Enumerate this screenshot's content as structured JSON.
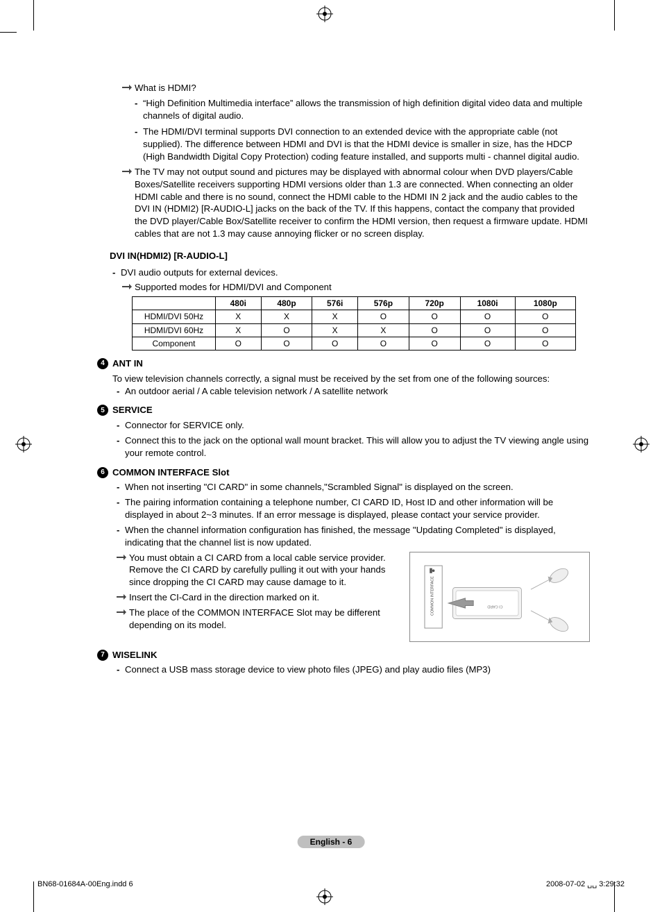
{
  "crop_marks": {
    "color": "#000000",
    "len_long": 44,
    "len_short": 24
  },
  "arrow_icon_label": "note-arrow",
  "sections": {
    "hdmi_q": "What is HDMI?",
    "hdmi_def": "“High Definition Multimedia interface” allows the transmission of high definition digital video data and multiple channels of digital audio.",
    "hdmi_dvi": "The HDMI/DVI terminal supports DVI connection to an extended device with the appropriate cable (not supplied). The difference between HDMI and DVI is that the HDMI device is smaller in size, has the HDCP (High Bandwidth Digital Copy Protection) coding feature installed, and supports multi - channel digital audio.",
    "hdmi_warn": "The TV may not output sound and pictures may be displayed with abnormal colour when DVD players/Cable Boxes/Satellite receivers supporting HDMI versions older than 1.3 are connected. When connecting an older HDMI cable and there is no sound, connect the HDMI cable to the HDMI IN 2 jack and the audio cables to the DVI IN (HDMI2) [R-AUDIO-L] jacks on the back of the TV. If this happens, contact the company that provided the DVD player/Cable Box/Satellite receiver to confirm the HDMI version, then request a firmware update. HDMI cables that are not 1.3 may cause annoying flicker or no screen display."
  },
  "dvi_heading": "DVI IN(HDMI2) [R-AUDIO-L]",
  "dvi_bullet": "DVI audio outputs for external devices.",
  "dvi_modes_note": "Supported modes for HDMI/DVI and Component",
  "modes_table": {
    "columns": [
      "",
      "480i",
      "480p",
      "576i",
      "576p",
      "720p",
      "1080i",
      "1080p"
    ],
    "rows": [
      [
        "HDMI/DVI 50Hz",
        "X",
        "X",
        "X",
        "O",
        "O",
        "O",
        "O"
      ],
      [
        "HDMI/DVI 60Hz",
        "X",
        "O",
        "X",
        "X",
        "O",
        "O",
        "O"
      ],
      [
        "Component",
        "O",
        "O",
        "O",
        "O",
        "O",
        "O",
        "O"
      ]
    ],
    "header_bg": "#ffffff",
    "border_color": "#000000",
    "fontsize": 12
  },
  "ant": {
    "num": "4",
    "title": "ANT IN",
    "intro": "To view television channels correctly, a signal must be received by the set from one of the following sources:",
    "bullet": "An outdoor aerial / A cable television network / A satellite network"
  },
  "service": {
    "num": "5",
    "title": "SERVICE",
    "b1": "Connector for SERVICE only.",
    "b2": "Connect this to the jack on the optional wall mount bracket. This will allow you to adjust the TV viewing angle using your remote control."
  },
  "ci": {
    "num": "6",
    "title": "COMMON INTERFACE Slot",
    "b1": "When not inserting \"CI CARD\" in some channels,\"Scrambled Signal\" is displayed on the screen.",
    "b2": "The pairing information containing a telephone number, CI CARD ID, Host ID and other information will be displayed in about 2~3 minutes. If an error message is displayed, please contact your service provider.",
    "b3": "When the channel information configuration has finished, the message \"Updating Completed\" is displayed, indicating that the channel list is now updated.",
    "n1": "You must obtain a CI CARD from a local cable service provider. Remove the CI CARD by carefully pulling it out with your hands since dropping the CI CARD may cause damage to it.",
    "n2": "Insert the CI-Card in the direction marked on it.",
    "n3": "The place of the COMMON INTERFACE Slot may be different depending on its model.",
    "diagram_label_left": "COMMON INTERFACE",
    "diagram_label_card": "CI CARD"
  },
  "wiselink": {
    "num": "7",
    "title": "WISELINK",
    "b1": "Connect a USB mass storage device to view photo files (JPEG) and play audio files (MP3)"
  },
  "page_num": "English - 6",
  "footer_left": "BN68-01684A-00Eng.indd   6",
  "footer_right": "2008-07-02   ␣␣ 3:29:32"
}
